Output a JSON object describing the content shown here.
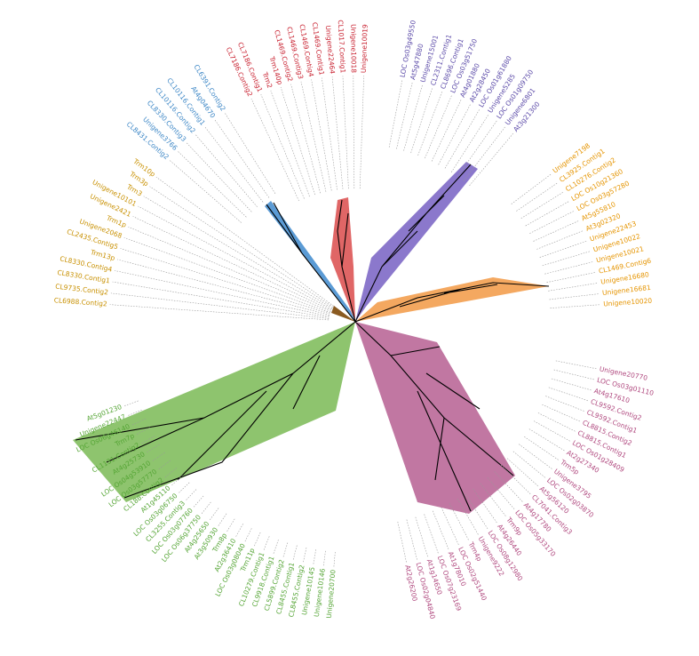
{
  "clades": [
    {
      "labels": [
        "CL7186.Contig2",
        "CL7186.Contig1",
        "Trm2",
        "Trm140p",
        "CL1469.Contig2",
        "CL1469.Contig3",
        "CL1469.Contig4",
        "CL1469.Contig1",
        "Unigene22464",
        "CL1017.Contig1",
        "Unigene10018",
        "Unigene10019"
      ]
    },
    {
      "labels": [
        "LOC Os03g49550",
        "At5g47880",
        "Unigene15001",
        "CL2311.Contig1",
        "CL8696.Contig1",
        "LOC Os03g51750",
        "At4g01880",
        "At2g28450",
        "LOC Os01g61880",
        "Unigene5285",
        "LOC Os01g09750",
        "Unigene6801",
        "At3g21300"
      ]
    },
    {
      "labels": [
        "Unigene7198",
        "CL3925.Contig1",
        "CL10276.Contig2",
        "LOC Os10g21360",
        "LOC Os03g57280",
        "At5g55810",
        "At3g02320",
        "Unigene22453",
        "Unigene10022",
        "Unigene10021",
        "CL1469.Contig6",
        "Unigene16680",
        "Unigene16681",
        "Unigene10020"
      ]
    },
    {
      "labels": [
        "Unigene20770",
        "LOC Os03g01110",
        "At4g17610",
        "CL9592.Contig2",
        "CL9592.Contig1",
        "CL8815.Contig2",
        "CL8815.Contig1",
        "LOC Os01g28409",
        "At2g27340",
        "Trm5p",
        "Unigene3795",
        "LOC Os02g03870",
        "At5g56120",
        "CL7041.Contig3",
        "At4g17780",
        "LOC Os05g33170",
        "Trm9p",
        "At4g26440",
        "LOC Os08g12980",
        "Unigene9222",
        "Trm4p",
        "LOC Os02g51440",
        "At1g78010",
        "LOC Os07g23169",
        "At1g14650",
        "LOC Os02g04840",
        "At2g26200"
      ]
    },
    {
      "labels": [
        "Unigene20700",
        "Unigene10146",
        "Unigene10145",
        "CL8455.Contig2",
        "CL8455.Contig1",
        "CL5899.Contig2",
        "CL9918.Contig1",
        "CL10279.Contig1",
        "Trm11p",
        "LOC Os03g08040",
        "At2g36410",
        "Trm8p",
        "At3g50930",
        "At4g25650",
        "LOC Os06g37750",
        "LOC Os03g07760",
        "CL3255.Contig3",
        "LOC Os03g06750",
        "At1g45110",
        "CL188.Contig2",
        "LOC Os03g57770",
        "LOC Os04g53910",
        "At4g25730",
        "CL1131.Contig2",
        "Trm7p",
        "LOC Os06g46140",
        "Unigene22447",
        "At5g01230"
      ]
    },
    {
      "labels": [
        "CL6988.Contig2",
        "CL9735.Contig2",
        "CL8330.Contig1",
        "CL8330.Contig4",
        "Trm13p",
        "CL2435.Contig5",
        "Unigene2068",
        "Trm1p",
        "Unigene2421",
        "Unigene10101",
        "Trm3",
        "Trm3p",
        "Trm10p"
      ]
    },
    {
      "labels": [
        "CL8431.Contig2",
        "Unigene3766",
        "CL8330.Contig3",
        "CL10116.Contig2",
        "CL10116.Contig1",
        "At4g04670",
        "CL6391.Contig2"
      ]
    }
  ]
}
